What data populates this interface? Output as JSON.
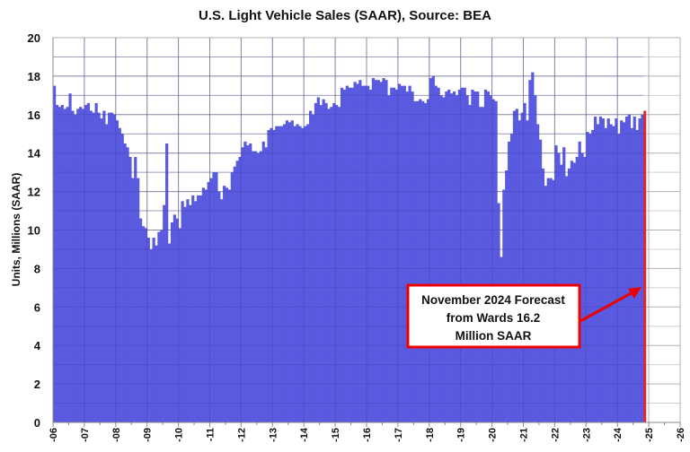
{
  "chart_data": {
    "type": "bar",
    "title": "U.S. Light Vehicle Sales (SAAR), Source: BEA",
    "xlabel": "",
    "ylabel": "Units, Millions (SAAR)",
    "ylim": [
      0,
      20
    ],
    "yticks": [
      0,
      2,
      4,
      6,
      8,
      10,
      12,
      14,
      16,
      18,
      20
    ],
    "xlim": [
      "2006-01",
      "2026-01"
    ],
    "xtick_labels": [
      "-06",
      "-07",
      "-08",
      "-09",
      "-10",
      "-11",
      "-12",
      "-13",
      "-14",
      "-15",
      "-16",
      "-17",
      "-18",
      "-19",
      "-20",
      "-21",
      "-22",
      "-23",
      "-24",
      "-25",
      "-26"
    ],
    "grid": true,
    "frequency": "monthly",
    "colors": {
      "bars": "#5a5ae0",
      "forecast": "#ee2222",
      "annotation_border": "#ee0000"
    },
    "series": [
      {
        "values_by_year": {
          "2006": [
            17.5,
            16.5,
            16.4,
            16.5,
            16.3,
            16.4,
            17.1,
            16.2,
            16.0,
            16.3,
            16.4,
            16.3
          ],
          "2007": [
            16.5,
            16.6,
            16.2,
            16.1,
            16.6,
            16.1,
            15.8,
            16.2,
            15.5,
            16.1,
            16.1,
            16.0
          ],
          "2008": [
            15.7,
            15.3,
            15.0,
            14.5,
            14.3,
            13.8,
            12.7,
            13.8,
            12.7,
            10.6,
            10.2,
            10.1
          ],
          "2009": [
            9.6,
            9.0,
            9.6,
            9.2,
            9.9,
            10.0,
            11.3,
            14.5,
            9.3,
            10.4,
            10.8,
            10.6
          ],
          "2010": [
            10.1,
            11.5,
            11.2,
            11.6,
            11.3,
            11.8,
            11.5,
            11.8,
            11.8,
            12.2,
            12.1,
            12.5
          ],
          "2011": [
            12.7,
            13.0,
            13.0,
            12.0,
            11.6,
            12.3,
            12.2,
            12.1,
            13.0,
            13.3,
            13.6,
            13.8
          ],
          "2012": [
            14.3,
            14.6,
            14.4,
            14.5,
            14.1,
            14.1,
            14.0,
            14.1,
            14.6,
            14.3,
            15.2,
            15.3
          ],
          "2013": [
            15.2,
            15.4,
            15.4,
            15.4,
            15.5,
            15.7,
            15.6,
            15.7,
            15.4,
            15.5,
            15.4,
            15.3
          ],
          "2014": [
            15.4,
            15.5,
            16.2,
            16.0,
            16.6,
            16.9,
            16.5,
            16.8,
            16.6,
            16.3,
            16.4,
            16.6
          ],
          "2015": [
            16.5,
            16.4,
            17.4,
            17.3,
            17.5,
            17.4,
            17.4,
            17.7,
            17.6,
            17.8,
            17.5,
            17.5
          ],
          "2016": [
            17.5,
            17.3,
            17.9,
            17.8,
            17.8,
            17.7,
            17.9,
            17.8,
            17.0,
            17.4,
            17.4,
            17.3
          ],
          "2017": [
            17.6,
            17.5,
            17.5,
            17.2,
            17.5,
            17.2,
            16.7,
            16.7,
            16.8,
            16.7,
            16.6,
            16.8
          ],
          "2018": [
            17.9,
            18.0,
            17.5,
            17.4,
            17.0,
            16.9,
            17.2,
            17.3,
            17.1,
            17.2,
            17.0,
            17.3
          ],
          "2019": [
            17.4,
            17.4,
            17.0,
            16.5,
            17.3,
            17.2,
            17.2,
            16.4,
            16.4,
            17.3,
            17.2,
            17.0
          ],
          "2020": [
            16.8,
            16.7,
            11.4,
            8.6,
            12.1,
            13.1,
            14.6,
            15.0,
            16.2,
            16.3,
            15.7,
            16.1
          ],
          "2021": [
            16.6,
            15.7,
            17.8,
            18.2,
            17.0,
            15.5,
            14.7,
            13.2,
            12.3,
            12.7,
            12.7,
            12.6
          ],
          "2022": [
            14.4,
            14.0,
            13.4,
            14.3,
            12.8,
            13.2,
            13.6,
            13.5,
            13.8,
            14.6,
            14.0,
            13.8
          ],
          "2023": [
            15.1,
            15.0,
            15.2,
            15.9,
            15.5,
            15.9,
            15.8,
            15.3,
            15.8,
            15.5,
            15.4,
            15.8
          ],
          "2024": [
            15.0,
            15.7,
            15.6,
            15.9,
            16.0,
            15.3,
            15.9,
            15.2,
            15.8,
            16.0
          ]
        }
      }
    ],
    "forecast": {
      "x": "2024-11",
      "y": 16.2
    },
    "annotation": {
      "lines": [
        "November 2024 Forecast",
        "from Wards 16.2",
        "Million SAAR"
      ]
    }
  }
}
